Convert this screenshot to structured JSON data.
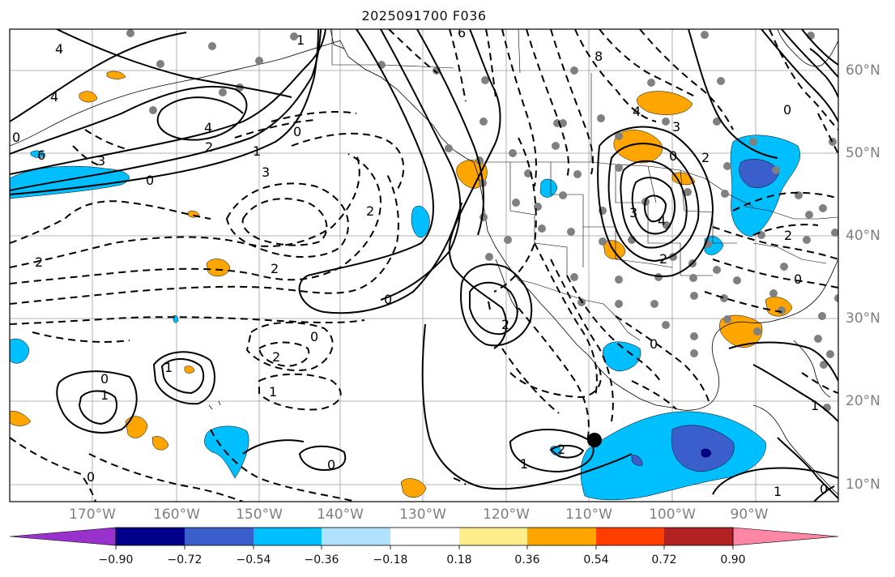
{
  "title": "2025091700 F036",
  "longitude_labels": [
    "170°W",
    "160°W",
    "150°W",
    "140°W",
    "130°W",
    "120°W",
    "110°W",
    "100°W",
    "90°W"
  ],
  "latitude_labels": [
    "60°N",
    "50°N",
    "40°N",
    "30°N",
    "20°N",
    "10°N"
  ],
  "colorbar": {
    "ticks": [
      "−0.90",
      "−0.72",
      "−0.54",
      "−0.36",
      "−0.18",
      "0.18",
      "0.36",
      "0.54",
      "0.72",
      "0.90"
    ],
    "colors": [
      "#9932cc",
      "#00008b",
      "#3a5fcd",
      "#00bfff",
      "#b0e2ff",
      "#ffffff",
      "#ffec8b",
      "#ffa500",
      "#ff3e00",
      "#b22222",
      "#ff87a5"
    ]
  },
  "contour_labels": [
    {
      "id": "label-4-nw",
      "text": "4"
    },
    {
      "id": "label-4-w",
      "text": "4"
    },
    {
      "id": "label-4-gulf",
      "text": "4"
    },
    {
      "id": "label-6",
      "text": "6"
    },
    {
      "id": "label-3-w",
      "text": "3"
    },
    {
      "id": "label-2-w",
      "text": "2"
    },
    {
      "id": "label-1-w",
      "text": "1"
    },
    {
      "id": "label-0-w",
      "text": "0"
    },
    {
      "id": "label-0-n",
      "text": "0"
    },
    {
      "id": "label-neg3",
      "text": "3"
    },
    {
      "id": "label-neg2-w",
      "text": "2"
    },
    {
      "id": "label-neg2-c",
      "text": "2"
    },
    {
      "id": "label-neg2-s",
      "text": "2"
    },
    {
      "id": "label-neg1-s",
      "text": "1"
    },
    {
      "id": "label-0-c",
      "text": "0"
    },
    {
      "id": "label-0-s",
      "text": "0"
    },
    {
      "id": "label-0-hi",
      "text": "0"
    },
    {
      "id": "label-1-hi",
      "text": "1"
    },
    {
      "id": "label-1-hi2",
      "text": "1"
    },
    {
      "id": "label-0-sw",
      "text": "0"
    },
    {
      "id": "label-1-top",
      "text": "1"
    },
    {
      "id": "label-2-coast",
      "text": "2"
    },
    {
      "id": "label-0-bc",
      "text": "0"
    },
    {
      "id": "label-2-baja",
      "text": "2"
    },
    {
      "id": "label-1-mex",
      "text": "1"
    },
    {
      "id": "label-2-mex",
      "text": "2"
    },
    {
      "id": "label-0-mex",
      "text": "0"
    },
    {
      "id": "label-0-pac",
      "text": "0"
    },
    {
      "id": "label-4-us",
      "text": "4"
    },
    {
      "id": "label-3-us",
      "text": "3"
    },
    {
      "id": "label-2-us",
      "text": "2"
    },
    {
      "id": "label-0-us",
      "text": "0"
    },
    {
      "id": "label-3-low",
      "text": "3"
    },
    {
      "id": "label-4-low",
      "text": "4"
    },
    {
      "id": "label-2-low",
      "text": "2"
    },
    {
      "id": "label-0-east",
      "text": "0"
    },
    {
      "id": "label-2-east",
      "text": "2"
    },
    {
      "id": "label-0-se",
      "text": "0"
    },
    {
      "id": "label-1-se",
      "text": "1"
    },
    {
      "id": "label-0-carib",
      "text": "0"
    },
    {
      "id": "label-1-carib",
      "text": "1"
    },
    {
      "id": "label-8",
      "text": "8"
    },
    {
      "id": "label-6-n",
      "text": "6"
    }
  ]
}
